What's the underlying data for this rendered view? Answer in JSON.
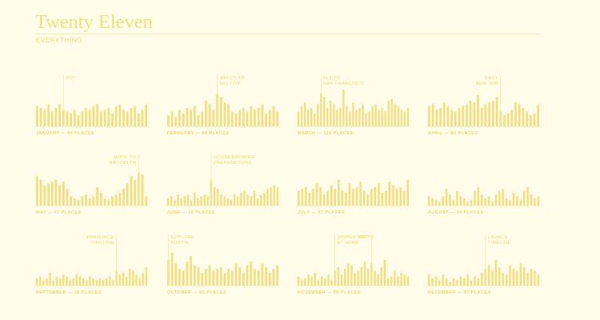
{
  "page": {
    "title": "Twenty Eleven",
    "subtitle": "EVERYTHING"
  },
  "colors": {
    "background": "#fffde9",
    "bar": "#f2df78",
    "silhouette": "#fbf8ee",
    "label": "#ecd56a",
    "rule": "#f0e5aa"
  },
  "chart_data": [
    {
      "type": "bar",
      "month": "JANUARY",
      "caption": "JANUARY — 94 PLACES",
      "values": [
        11,
        10,
        9,
        12,
        8,
        10,
        12,
        9,
        8,
        7,
        9,
        6,
        8,
        10,
        9,
        11,
        12,
        8,
        9,
        10,
        7,
        11,
        12,
        9,
        8,
        10,
        11,
        7,
        9,
        12
      ],
      "annotation": {
        "lines": [
          "DC!!"
        ],
        "bar_index": 7
      }
    },
    {
      "type": "bar",
      "month": "FEBRUARY",
      "caption": "FEBRUARY — 86 PLACES",
      "values": [
        6,
        8,
        5,
        9,
        7,
        10,
        9,
        11,
        6,
        8,
        14,
        12,
        9,
        18,
        16,
        13,
        12,
        8,
        7,
        9,
        10,
        8,
        11,
        9,
        10,
        12,
        7,
        9,
        11,
        8
      ],
      "annotation": {
        "lines": [
          "WHISTLER",
          "SKI TRIP"
        ],
        "bar_index": 13
      }
    },
    {
      "type": "bar",
      "month": "MARCH",
      "caption": "MARCH — 110 PLACES",
      "values": [
        8,
        11,
        13,
        9,
        10,
        7,
        12,
        18,
        16,
        10,
        14,
        12,
        9,
        10,
        20,
        11,
        8,
        13,
        9,
        10,
        12,
        7,
        8,
        11,
        12,
        9,
        10,
        8,
        14,
        15,
        12,
        11,
        9,
        8,
        10
      ],
      "annotation": {
        "lines": [
          "FLY TO",
          "SAN FRANCISCO"
        ],
        "bar_index": 7
      }
    },
    {
      "type": "bar",
      "month": "APRIL",
      "caption": "APRIL — 80 PLACES",
      "values": [
        11,
        12,
        9,
        10,
        13,
        11,
        9,
        8,
        10,
        11,
        12,
        14,
        13,
        17,
        10,
        12,
        13,
        14,
        16,
        8,
        6,
        7,
        9,
        13,
        12,
        10,
        8,
        6,
        7,
        12
      ],
      "annotation": {
        "lines": [
          "EASY",
          "NEW JOB"
        ],
        "bar_index": 19
      }
    },
    {
      "type": "bar",
      "month": "MAY",
      "caption": "MAY — 47 PLACES",
      "values": [
        16,
        14,
        11,
        12,
        13,
        14,
        11,
        13,
        9,
        5,
        4,
        3,
        5,
        6,
        4,
        5,
        10,
        7,
        4,
        3,
        5,
        6,
        7,
        9,
        12,
        16,
        14,
        18,
        17,
        5
      ],
      "annotation": {
        "lines": [
          "MOVE TO",
          "BROOKLYN"
        ],
        "bar_index": 27
      }
    },
    {
      "type": "bar",
      "month": "JUNE",
      "caption": "JUNE — 18 PLACES",
      "values": [
        4,
        5,
        3,
        6,
        4,
        5,
        6,
        3,
        7,
        4,
        5,
        6,
        5,
        14,
        10,
        9,
        6,
        5,
        4,
        3,
        6,
        5,
        7,
        8,
        6,
        5,
        8,
        4,
        6,
        7,
        9,
        10,
        11,
        10
      ],
      "annotation": {
        "lines": [
          "HOUSEWARMING",
          "PREPARATIONS"
        ],
        "bar_index": 13
      }
    },
    {
      "type": "bar",
      "month": "JULY",
      "caption": "JULY — 97 PLACES",
      "values": [
        8,
        9,
        10,
        7,
        9,
        12,
        10,
        6,
        8,
        11,
        9,
        14,
        8,
        7,
        12,
        9,
        10,
        13,
        8,
        6,
        9,
        10,
        12,
        7,
        8,
        13,
        11,
        9,
        10,
        8,
        14
      ],
      "annotation": null
    },
    {
      "type": "bar",
      "month": "AUGUST",
      "caption": "AUGUST — 94 PLACES",
      "values": [
        5,
        4,
        3,
        2,
        5,
        9,
        6,
        3,
        8,
        5,
        4,
        2,
        3,
        8,
        10,
        6,
        4,
        5,
        2,
        6,
        8,
        9,
        4,
        3,
        7,
        5,
        3,
        8,
        10,
        6,
        4,
        5
      ],
      "annotation": null
    },
    {
      "type": "bar",
      "month": "SEPTEMBER",
      "caption": "SEPTEMBER — 38 PLACES",
      "values": [
        4,
        5,
        3,
        4,
        7,
        3,
        5,
        4,
        6,
        5,
        3,
        4,
        6,
        5,
        4,
        3,
        5,
        4,
        3,
        4,
        3,
        4,
        5,
        3,
        8,
        6,
        7,
        5,
        9,
        8,
        6,
        4,
        7,
        10
      ],
      "annotation": {
        "lines": [
          "ANNOUNCE",
          "TIMELINE"
        ],
        "bar_index": 24
      }
    },
    {
      "type": "bar",
      "month": "OCTOBER",
      "caption": "OCTOBER — 95 PLACES",
      "values": [
        14,
        18,
        12,
        9,
        8,
        13,
        16,
        11,
        10,
        7,
        9,
        11,
        8,
        9,
        10,
        7,
        9,
        8,
        12,
        10,
        7,
        11,
        13,
        9,
        8,
        12,
        10,
        7,
        9,
        11
      ],
      "annotation": {
        "lines": [
          "EXPLORE",
          "AUSTIN"
        ],
        "bar_index": 0
      }
    },
    {
      "type": "bar",
      "month": "NOVEMBER",
      "caption": "NOVEMBER — 90 PLACES",
      "values": [
        5,
        3,
        4,
        6,
        5,
        7,
        3,
        5,
        4,
        6,
        3,
        8,
        10,
        6,
        9,
        12,
        11,
        7,
        8,
        10,
        13,
        9,
        12,
        8,
        6,
        10,
        14,
        4,
        5,
        8,
        5,
        7,
        6,
        5
      ],
      "annotation": {
        "lines": [
          "DINNER PARTY",
          "AT HOME"
        ],
        "bar_index": 11
      },
      "annotation2": {
        "lines": [
          "DC!!"
        ],
        "bar_index": 22
      }
    },
    {
      "type": "bar",
      "month": "DECEMBER",
      "caption": "DECEMBER — 87 PLACES",
      "values": [
        6,
        4,
        5,
        3,
        6,
        4,
        2,
        4,
        3,
        5,
        4,
        6,
        3,
        5,
        4,
        7,
        9,
        11,
        8,
        14,
        10,
        7,
        6,
        11,
        9,
        8,
        12,
        10,
        7,
        9,
        8,
        6
      ],
      "annotation": {
        "lines": [
          "LAUNCH",
          "TIMELINE"
        ],
        "bar_index": 16
      }
    }
  ]
}
